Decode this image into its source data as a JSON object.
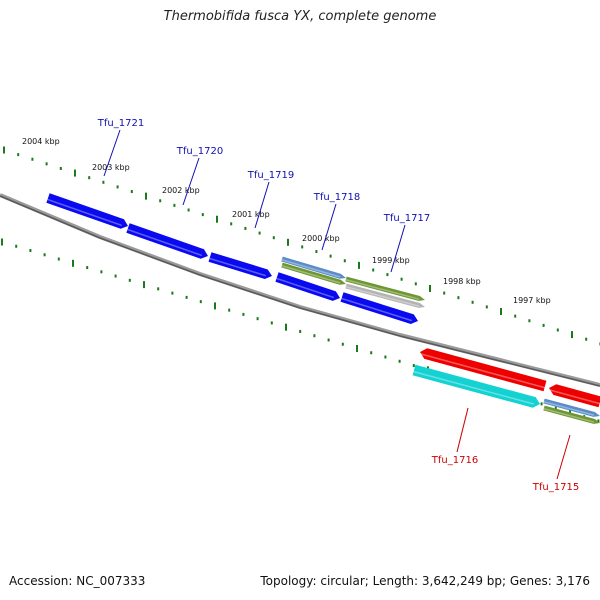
{
  "title": "Thermobifida fusca YX, complete genome",
  "footer": {
    "accession": "Accession: NC_007333",
    "summary": "Topology: circular; Length: 3,642,249 bp; Genes: 3,176"
  },
  "colors": {
    "forward_gene": "#0a0af0",
    "reverse_gene": "#ee0000",
    "cyan_gene": "#14d2d2",
    "steel_gene": "#5a8cc8",
    "olive_gene": "#6e9632",
    "grey_gene": "#b4b4b4",
    "tick": "#1a7a1a",
    "backbone": "#808080",
    "forward_label": "#1010b0",
    "reverse_label": "#cc0000"
  },
  "scale_ticks": [
    {
      "label": "2004 kbp"
    },
    {
      "label": "2003 kbp"
    },
    {
      "label": "2002 kbp"
    },
    {
      "label": "2001 kbp"
    },
    {
      "label": "2000 kbp"
    },
    {
      "label": "1999 kbp"
    },
    {
      "label": "1998 kbp"
    },
    {
      "label": "1997 kbp"
    }
  ],
  "gene_labels": [
    {
      "name": "Tfu_1721",
      "strand": "forward"
    },
    {
      "name": "Tfu_1720",
      "strand": "forward"
    },
    {
      "name": "Tfu_1719",
      "strand": "forward"
    },
    {
      "name": "Tfu_1718",
      "strand": "forward"
    },
    {
      "name": "Tfu_1717",
      "strand": "forward"
    },
    {
      "name": "Tfu_1716",
      "strand": "reverse"
    },
    {
      "name": "Tfu_1715",
      "strand": "reverse"
    }
  ]
}
